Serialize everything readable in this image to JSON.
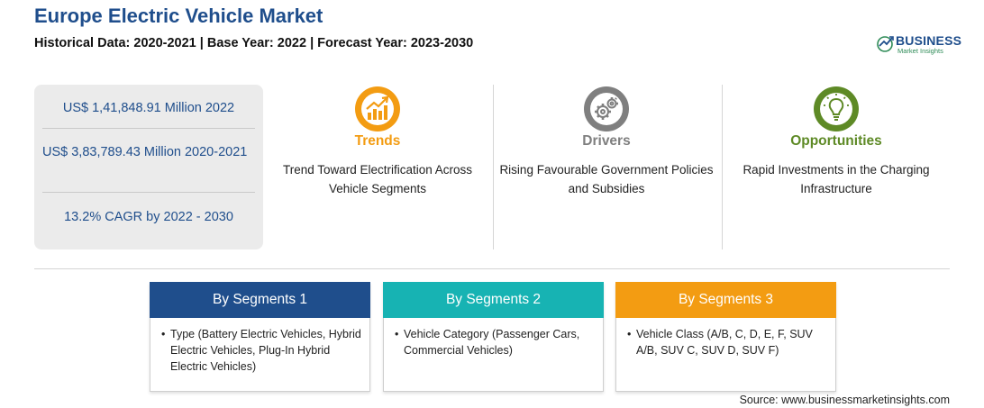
{
  "header": {
    "title": "Europe Electric Vehicle Market",
    "subtitle": "Historical Data: 2020-2021 | Base Year: 2022 | Forecast Year: 2023-2030"
  },
  "logo": {
    "name": "BUSINESS",
    "tagline": "Market Insights",
    "color": "#1f4e8c"
  },
  "stats": {
    "market_size": "US$ 1,41,848.91 Million 2022",
    "historical": "US$ 3,83,789.43 Million 2020-2021",
    "cagr": "13.2% CAGR by 2022 - 2030"
  },
  "highlights": [
    {
      "title": "Trends",
      "text": "Trend Toward Electrification Across Vehicle Segments",
      "icon": "rising-chart-icon",
      "color": "#f39c12"
    },
    {
      "title": "Drivers",
      "text": "Rising Favourable Government Policies and Subsidies",
      "icon": "gears-icon",
      "color": "#7f7f7f"
    },
    {
      "title": "Opportunities",
      "text": "Rapid Investments in the Charging Infrastructure",
      "icon": "lightbulb-icon",
      "color": "#5e8a26"
    }
  ],
  "segments": [
    {
      "title": "By Segments 1",
      "bullet": "•",
      "text": "Type (Battery Electric Vehicles, Hybrid Electric Vehicles, Plug-In Hybrid Electric Vehicles)",
      "color": "#1f4e8c"
    },
    {
      "title": "By Segments 2",
      "bullet": "•",
      "text": "Vehicle Category (Passenger Cars, Commercial Vehicles)",
      "color": "#17b3b3"
    },
    {
      "title": "By Segments 3",
      "bullet": "•",
      "text": "Vehicle Class (A/B, C, D, E, F, SUV A/B, SUV C, SUV D, SUV F)",
      "color": "#f39c12"
    }
  ],
  "source": "Source: www.businessmarketinsights.com"
}
